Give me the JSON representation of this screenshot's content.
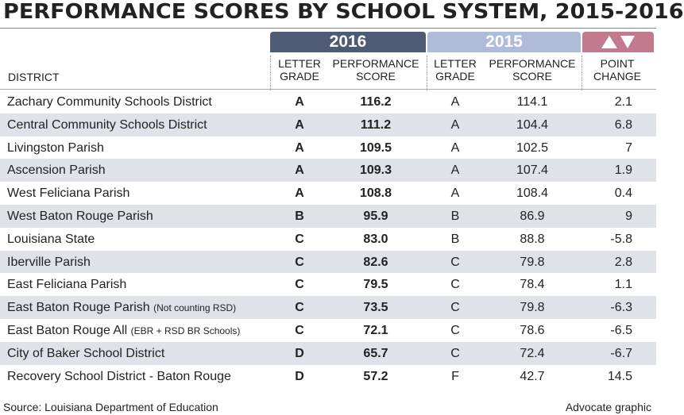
{
  "title": "PERFORMANCE SCORES BY SCHOOL SYSTEM, 2015-2016",
  "groups": [
    "2016",
    "2015"
  ],
  "columns": [
    "DISTRICT",
    "LETTER GRADE",
    "PERFORMANCE SCORE",
    "LETTER GRADE",
    "PERFORMANCE SCORE",
    "POINT CHANGE"
  ],
  "rows": [
    {
      "district": "Zachary Community Schools District",
      "values": [
        "A",
        "116.2",
        "A",
        "114.1",
        "2.1"
      ]
    },
    {
      "district": "Central Community Schools District",
      "values": [
        "A",
        "111.2",
        "A",
        "104.4",
        "6.8"
      ]
    },
    {
      "district": "Livingston Parish",
      "values": [
        "A",
        "109.5",
        "A",
        "102.5",
        "7"
      ]
    },
    {
      "district": "Ascension Parish",
      "values": [
        "A",
        "109.3",
        "A",
        "107.4",
        "1.9"
      ]
    },
    {
      "district": "West Feliciana Parish",
      "values": [
        "A",
        "108.8",
        "A",
        "108.4",
        "0.4"
      ]
    },
    {
      "district": "West Baton Rouge Parish",
      "values": [
        "B",
        "95.9",
        "B",
        "86.9",
        "9"
      ]
    },
    {
      "district": "Louisiana State",
      "values": [
        "C",
        "83.0",
        "B",
        "88.8",
        "-5.8"
      ]
    },
    {
      "district": "Iberville Parish",
      "values": [
        "C",
        "82.6",
        "C",
        "79.8",
        "2.8"
      ]
    },
    {
      "district": "East Feliciana Parish",
      "values": [
        "C",
        "79.5",
        "C",
        "78.4",
        "1.1"
      ]
    },
    {
      "district": "East Baton Rouge Parish",
      "note": "(Not counting RSD)",
      "values": [
        "C",
        "73.5",
        "C",
        "79.8",
        "-6.3"
      ]
    },
    {
      "district": "East Baton Rouge All",
      "note": "(EBR + RSD BR Schools)",
      "values": [
        "C",
        "72.1",
        "C",
        "78.6",
        "-6.5"
      ]
    },
    {
      "district": "City of Baker School District",
      "values": [
        "D",
        "65.7",
        "C",
        "72.4",
        "-6.7"
      ]
    },
    {
      "district": "Recovery School District - Baton Rouge",
      "values": [
        "D",
        "57.2",
        "F",
        "42.7",
        "14.5"
      ]
    }
  ],
  "source": "Source: Louisiana Department of Education",
  "credit": "Advocate graphic"
}
